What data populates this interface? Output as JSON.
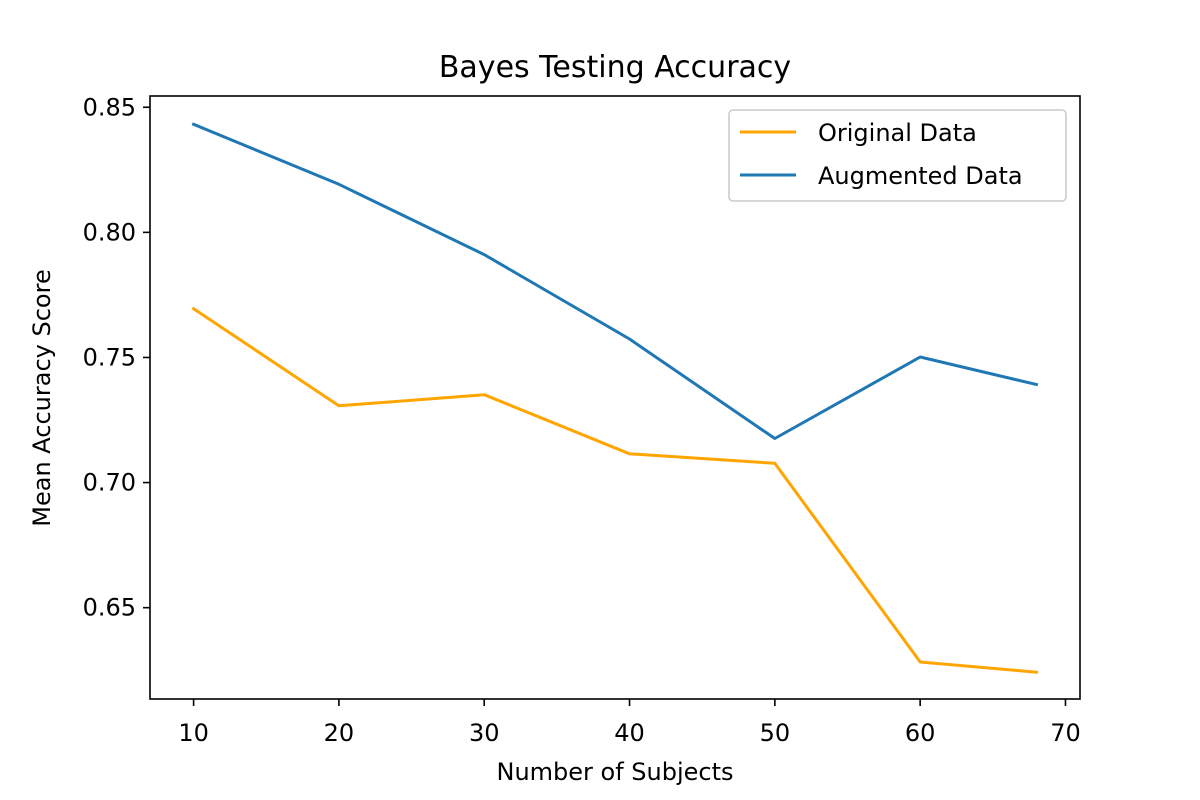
{
  "chart_data": {
    "type": "line",
    "title": "Bayes Testing Accuracy",
    "xlabel": "Number of Subjects",
    "ylabel": "Mean Accuracy Score",
    "xlim": [
      7,
      71
    ],
    "ylim": [
      0.6135,
      0.8545
    ],
    "xticks": [
      10,
      20,
      30,
      40,
      50,
      60,
      70
    ],
    "xtick_labels": [
      "10",
      "20",
      "30",
      "40",
      "50",
      "60",
      "70"
    ],
    "yticks": [
      0.65,
      0.7,
      0.75,
      0.8,
      0.85
    ],
    "ytick_labels": [
      "0.65",
      "0.70",
      "0.75",
      "0.80",
      "0.85"
    ],
    "grid": false,
    "legend_position": "upper right",
    "series": [
      {
        "name": "Original Data",
        "color": "#ffa500",
        "x": [
          10,
          20,
          30,
          40,
          50,
          60,
          68
        ],
        "values": [
          0.7695,
          0.7307,
          0.7351,
          0.7115,
          0.7077,
          0.6283,
          0.6242
        ]
      },
      {
        "name": "Augmented Data",
        "color": "#1f77b4",
        "x": [
          10,
          20,
          30,
          40,
          50,
          60,
          68
        ],
        "values": [
          0.8432,
          0.8192,
          0.7911,
          0.7574,
          0.7176,
          0.7502,
          0.7392
        ]
      }
    ]
  }
}
